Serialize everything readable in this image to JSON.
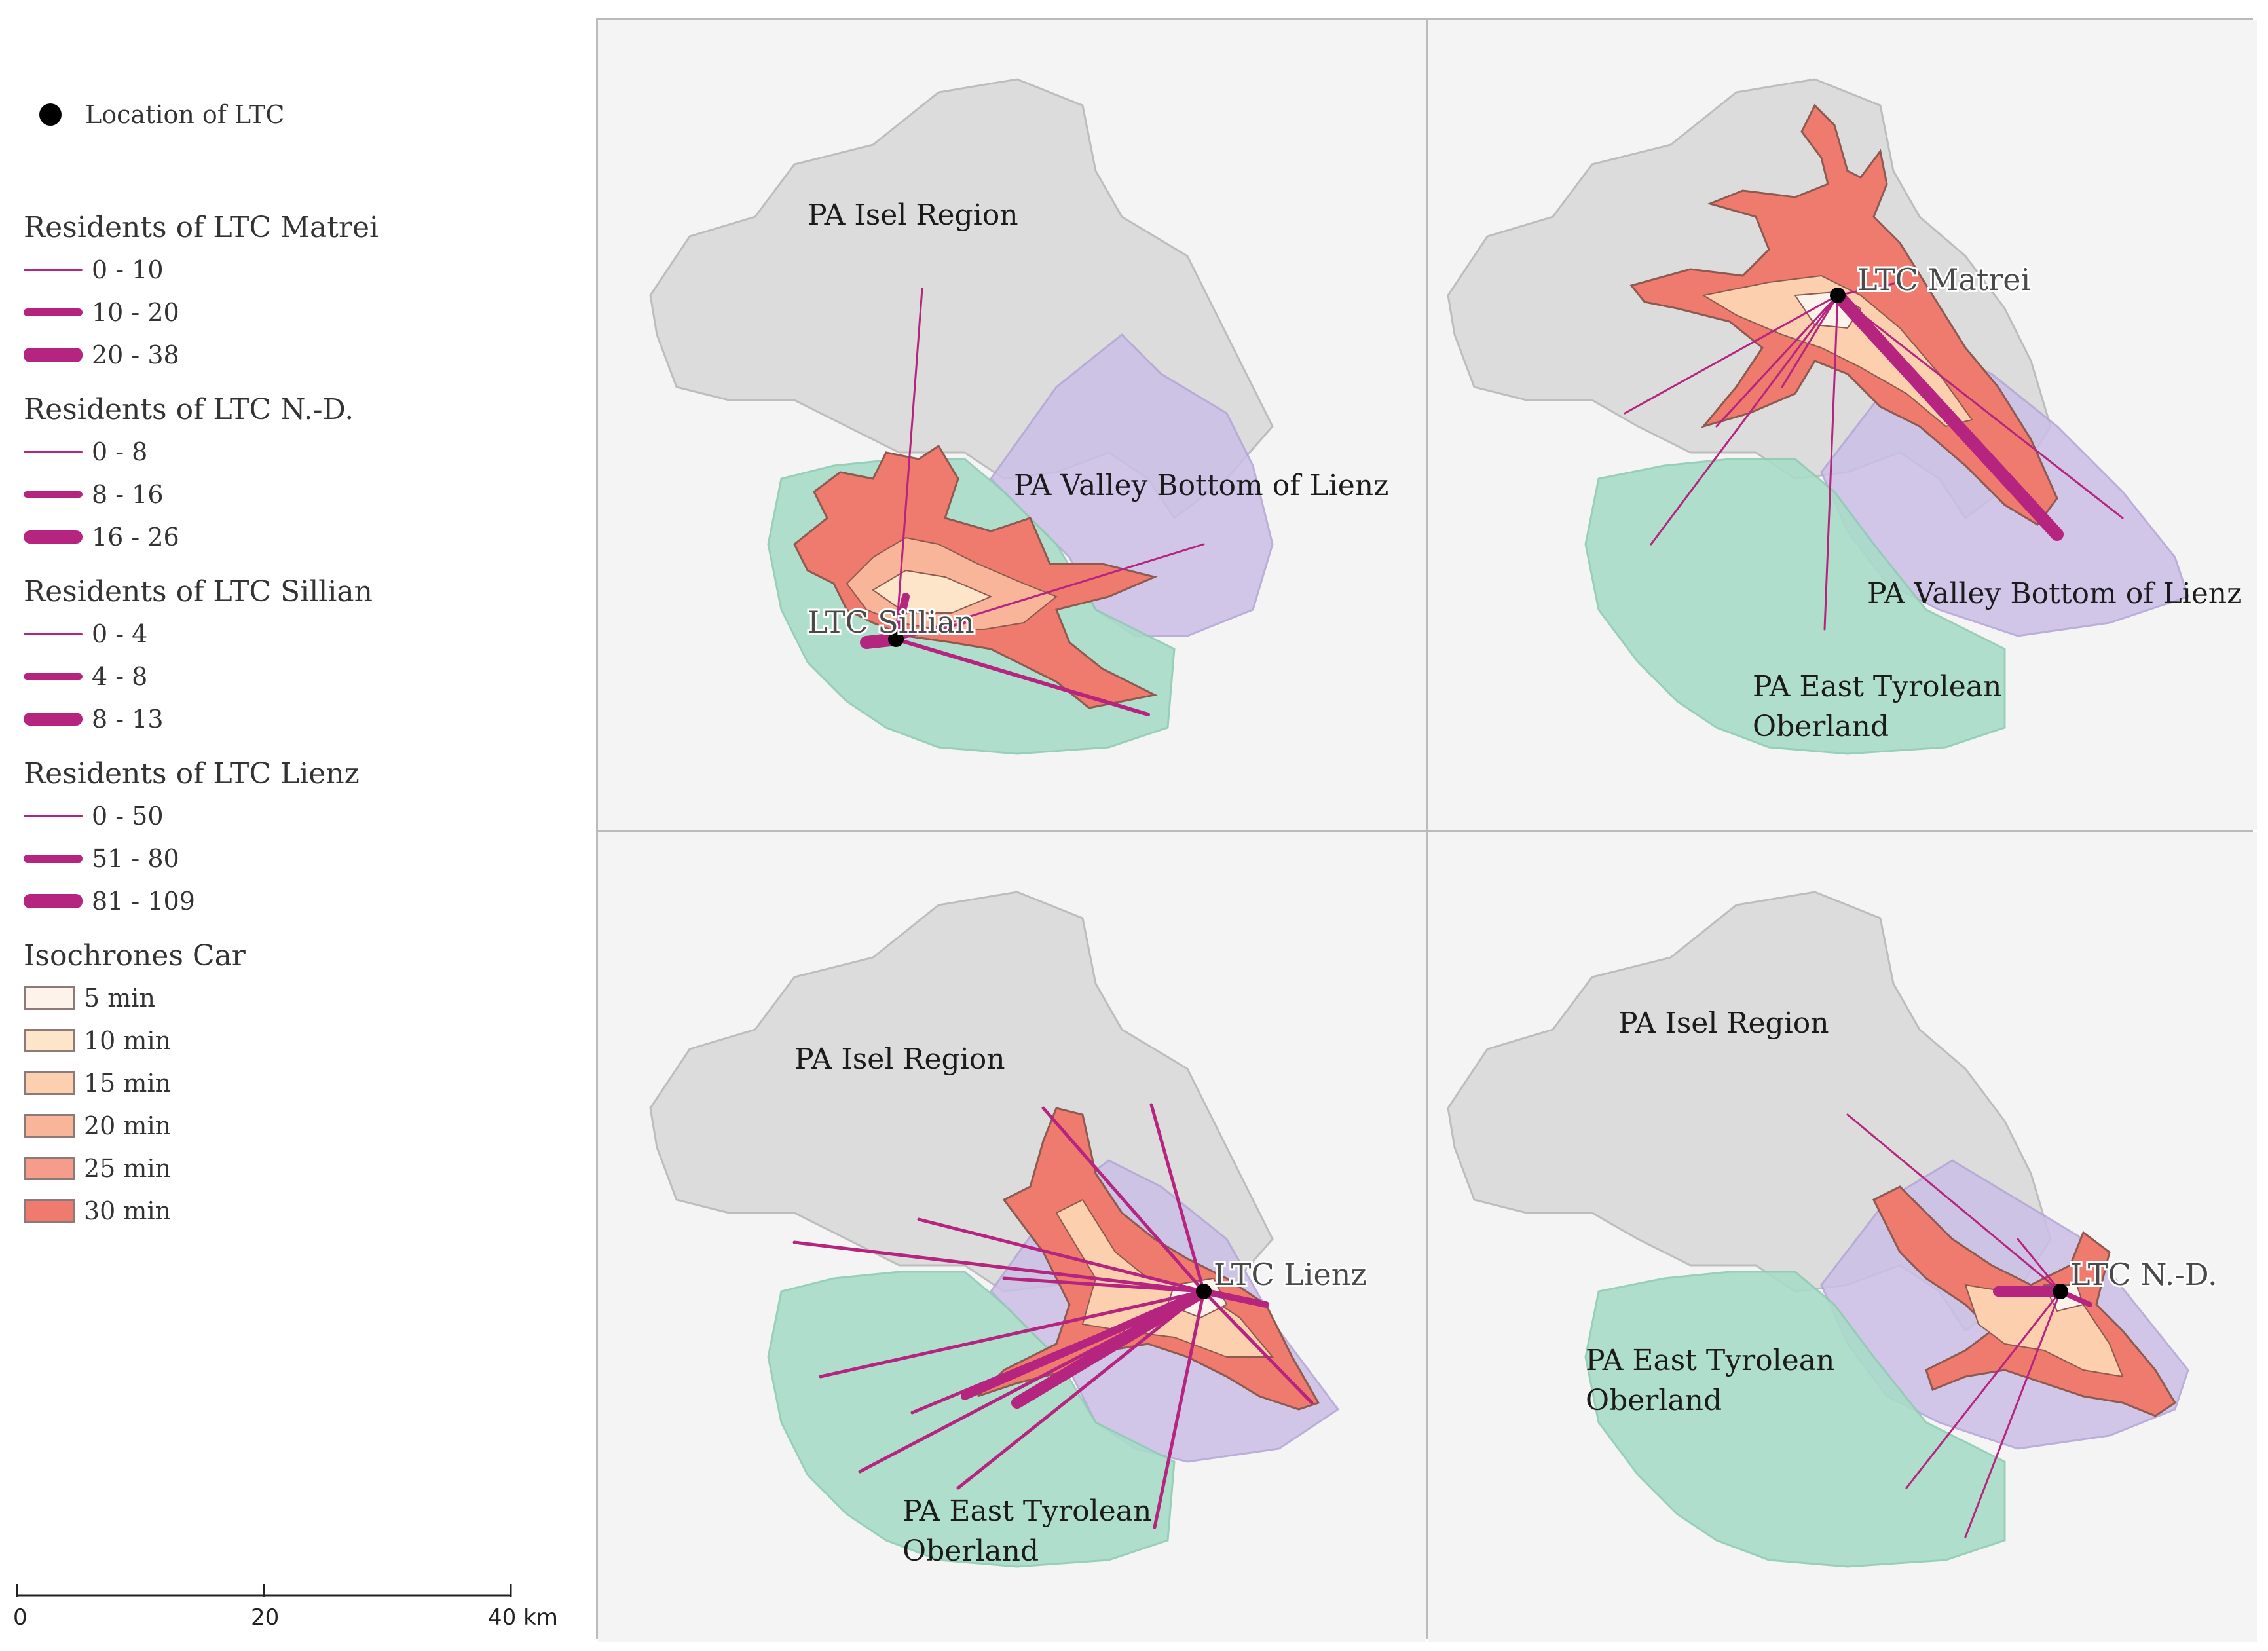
{
  "legend": {
    "location": "Location of LTC",
    "groups": [
      {
        "title": "Residents of LTC Matrei",
        "classes": [
          "0 - 10",
          "10 - 20",
          "20 - 38"
        ]
      },
      {
        "title": "Residents of LTC N.-D.",
        "classes": [
          "0 - 8",
          "8 - 16",
          "16 - 26"
        ]
      },
      {
        "title": "Residents of LTC Sillian",
        "classes": [
          "0 - 4",
          "4 - 8",
          "8 - 13"
        ]
      },
      {
        "title": "Residents of LTC Lienz",
        "classes": [
          "0 - 50",
          "51 - 80",
          "81 - 109"
        ]
      }
    ],
    "isochrones_title": "Isochrones Car",
    "isochrones": [
      {
        "label": "5 min",
        "color": "#fdf3ea"
      },
      {
        "label": "10 min",
        "color": "#fde5c9"
      },
      {
        "label": "15 min",
        "color": "#fccfae"
      },
      {
        "label": "20 min",
        "color": "#f9b59a"
      },
      {
        "label": "25 min",
        "color": "#f59c8c"
      },
      {
        "label": "30 min",
        "color": "#ef7a6e"
      }
    ]
  },
  "scalebar": {
    "ticks": [
      "0",
      "20"
    ],
    "end_label": "40 km"
  },
  "colors": {
    "flow_line": "#b5247e",
    "pa_isel": "#d6d6d6",
    "pa_valley": "#cbbfe6",
    "pa_oberland": "#a9dcc8",
    "map_background": "#f4f4f4"
  },
  "panels": {
    "sillian": {
      "ltc": "LTC Sillian",
      "labels": [
        "PA Isel Region",
        "PA Valley Bottom of Lienz"
      ]
    },
    "matrei": {
      "ltc": "LTC Matrei",
      "labels": [
        "PA Valley Bottom of Lienz",
        "PA East Tyrolean",
        "Oberland"
      ]
    },
    "lienz": {
      "ltc": "LTC Lienz",
      "labels": [
        "PA Isel Region",
        "PA East Tyrolean",
        "Oberland"
      ]
    },
    "nd": {
      "ltc": "LTC N.-D.",
      "labels": [
        "PA Isel Region",
        "PA East Tyrolean",
        "Oberland"
      ]
    }
  }
}
